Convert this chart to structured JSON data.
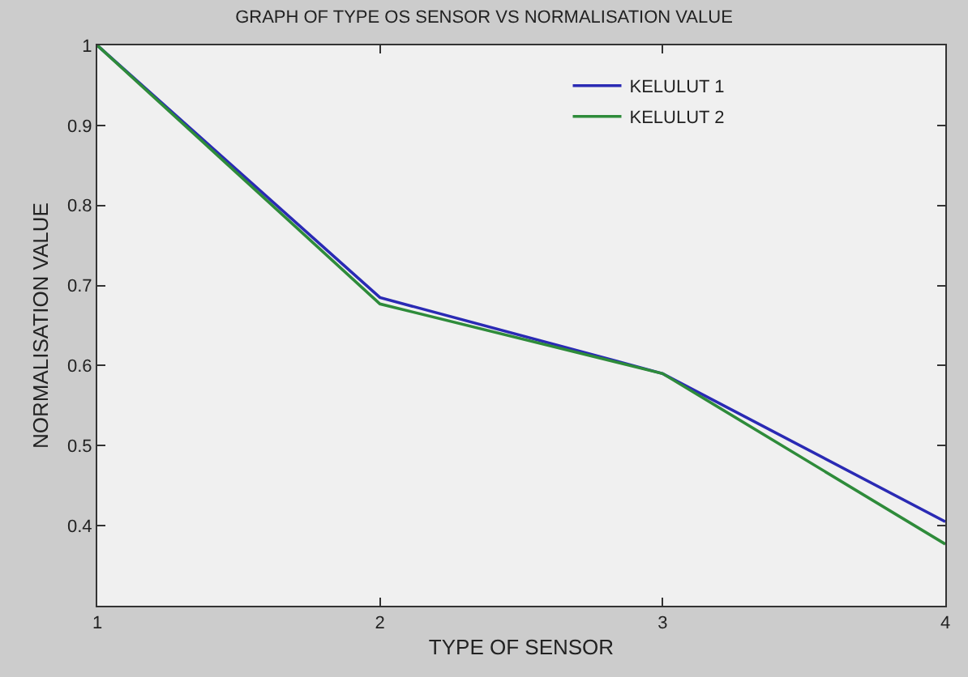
{
  "chart_data": {
    "type": "line",
    "title": "GRAPH OF TYPE OS SENSOR VS NORMALISATION VALUE",
    "xlabel": "TYPE OF SENSOR",
    "ylabel": "NORMALISATION VALUE",
    "x": [
      1,
      2,
      3,
      4
    ],
    "series": [
      {
        "name": "KELULUT 1",
        "color": "#2a2ab4",
        "values": [
          1,
          0.685,
          0.59,
          0.405
        ]
      },
      {
        "name": "KELULUT 2",
        "color": "#2e8b3a",
        "values": [
          1,
          0.677,
          0.59,
          0.377
        ]
      }
    ],
    "xlim": [
      1,
      4
    ],
    "xticks": [
      1,
      2,
      3,
      4
    ],
    "ylim": [
      0.3,
      1
    ],
    "yticks": [
      0.4,
      0.5,
      0.6,
      0.7,
      0.8,
      0.9,
      1
    ],
    "grid": false,
    "legend": "top right",
    "marker": "none",
    "line_style": "solid"
  }
}
